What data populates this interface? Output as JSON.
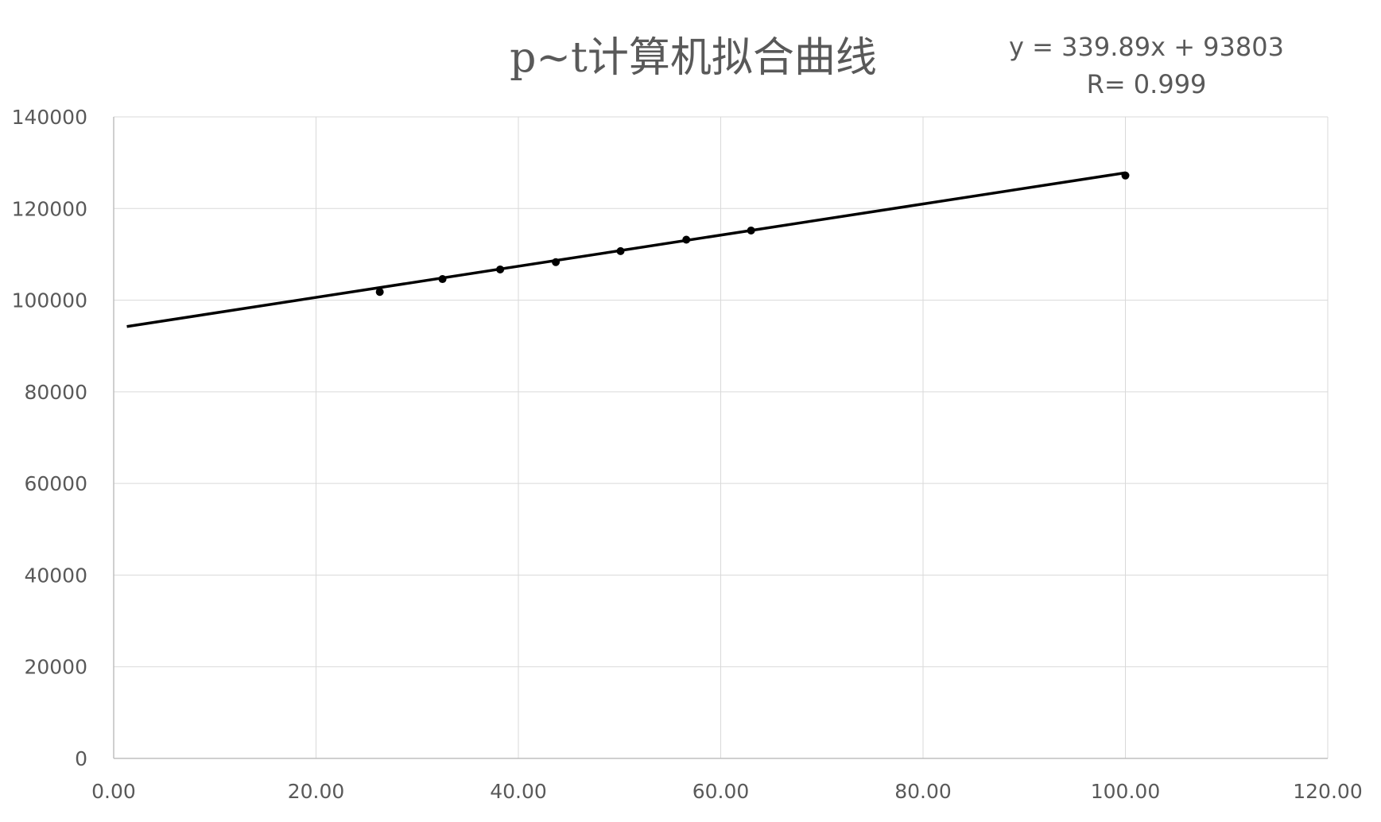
{
  "chart_data": {
    "type": "scatter",
    "title": "p~t计算机拟合曲线",
    "xlabel": "",
    "ylabel": "",
    "xlim": [
      0,
      120
    ],
    "ylim": [
      0,
      140000
    ],
    "x_ticks": [
      "0.00",
      "20.00",
      "40.00",
      "60.00",
      "80.00",
      "100.00",
      "120.00"
    ],
    "y_ticks": [
      "0",
      "20000",
      "40000",
      "60000",
      "80000",
      "100000",
      "120000",
      "140000"
    ],
    "grid": true,
    "legend": "none",
    "series": [
      {
        "x": [
          26.3,
          32.5,
          38.2,
          43.7,
          50.1,
          56.6,
          63.0,
          100.0
        ],
        "y": [
          101800,
          104600,
          106700,
          108300,
          110700,
          113200,
          115200,
          127200
        ]
      }
    ],
    "trendline": {
      "type": "linear",
      "slope": 339.89,
      "intercept": 93803,
      "x_range": [
        1.3,
        100.0
      ],
      "equation_label": "y = 339.89x + 93803",
      "r_label": "R= 0.999"
    },
    "colors": {
      "marker": "#000000",
      "line": "#000000",
      "grid": "#d9d9d9",
      "axis": "#bfbfbf",
      "text": "#595959"
    }
  }
}
